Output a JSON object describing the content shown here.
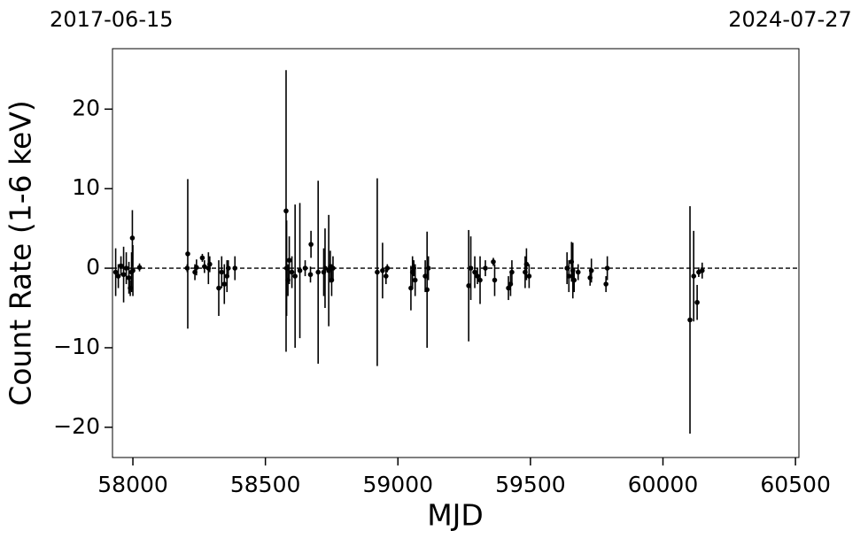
{
  "chart_data": {
    "type": "errorbar",
    "xlabel": "MJD",
    "ylabel": "Count Rate (1-6 keV)",
    "xlim": [
      57923,
      60513
    ],
    "ylim": [
      -23.8,
      27.6
    ],
    "xticks": [
      58000,
      58500,
      59000,
      59500,
      60000,
      60500
    ],
    "yticks": [
      {
        "value": -20,
        "label": "−20"
      },
      {
        "value": -10,
        "label": "−10"
      },
      0,
      10,
      20
    ],
    "x2ticks": [
      {
        "value": 57919,
        "label": "2017-06-15"
      },
      {
        "value": 60518,
        "label": "2024-07-27"
      }
    ],
    "hline": 0,
    "color": "#000000",
    "x": [
      57935,
      57945,
      57955,
      57965,
      57975,
      57985,
      57990,
      57995,
      57998,
      58000,
      58025,
      58207,
      58205,
      58234,
      58240,
      58262,
      58270,
      58285,
      58290,
      58324,
      58335,
      58345,
      58355,
      58360,
      58385,
      58578,
      58580,
      58585,
      58590,
      58600,
      58612,
      58630,
      58650,
      58672,
      58670,
      58699,
      58720,
      58725,
      58739,
      58745,
      58750,
      58755,
      58922,
      58942,
      58955,
      58960,
      59049,
      59055,
      59060,
      59065,
      59103,
      59110,
      59115,
      59267,
      59275,
      59290,
      59300,
      59310,
      59330,
      59360,
      59365,
      59417,
      59425,
      59430,
      59480,
      59485,
      59495,
      59638,
      59645,
      59655,
      59660,
      59665,
      59680,
      59725,
      59730,
      59785,
      59790,
      60102,
      60116,
      60129,
      60135,
      60148
    ],
    "values": [
      -0.5,
      -1.0,
      0.3,
      -0.8,
      0.0,
      -1.2,
      -2.5,
      -0.5,
      3.8,
      -0.3,
      0.1,
      1.8,
      0.0,
      -0.5,
      0.1,
      1.3,
      0.2,
      0.0,
      0.5,
      -2.5,
      -0.5,
      -2.0,
      -1.0,
      0.0,
      0.0,
      7.2,
      0.0,
      -1.5,
      1.0,
      -0.5,
      -1.0,
      -0.3,
      0.0,
      3.0,
      -0.8,
      -0.5,
      -0.5,
      0.0,
      -0.3,
      0.2,
      -1.5,
      0.0,
      -0.5,
      -0.3,
      -1.0,
      0.0,
      -2.5,
      -0.5,
      0.0,
      -1.5,
      -1.0,
      -2.7,
      0.0,
      -2.2,
      0.0,
      -0.5,
      -1.0,
      -1.5,
      0.0,
      0.8,
      -1.5,
      -2.5,
      -2.0,
      -0.5,
      -0.5,
      0.5,
      -1.0,
      0.0,
      -1.0,
      0.8,
      -0.3,
      -1.5,
      -0.5,
      -1.2,
      -0.3,
      -2.0,
      0.0,
      -6.5,
      -1.0,
      -4.3,
      -0.5,
      -0.3
    ],
    "errors": [
      3,
      1.5,
      1.2,
      3.5,
      2,
      2,
      1,
      2.5,
      3.5,
      3.2,
      0.5,
      9.4,
      0.5,
      1,
      1,
      0.5,
      0.8,
      2,
      1,
      3.5,
      2,
      2.5,
      2,
      1,
      1.5,
      17.7,
      6,
      2,
      3,
      2,
      9,
      8.5,
      1,
      1.7,
      1,
      11.5,
      3,
      5,
      7,
      2,
      2,
      1.5,
      11.8,
      3.5,
      1,
      0.5,
      2.8,
      2,
      1,
      2,
      2,
      7.3,
      1.5,
      7,
      4,
      2,
      1,
      3,
      1,
      0.5,
      2,
      1.5,
      1.5,
      1.5,
      2,
      2,
      1.5,
      2,
      2,
      2.5,
      3.5,
      1.5,
      1,
      1,
      1.5,
      1,
      1.5,
      14.3,
      5.7,
      2.2,
      0.6,
      1
    ]
  }
}
